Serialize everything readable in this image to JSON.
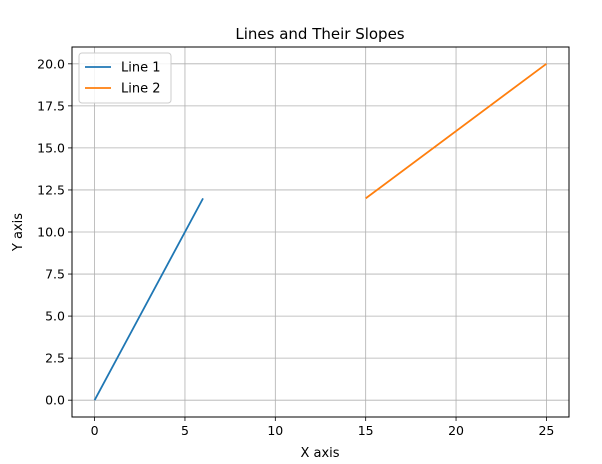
{
  "chart_data": {
    "type": "line",
    "title": "Lines and Their Slopes",
    "xlabel": "X axis",
    "ylabel": "Y axis",
    "xlim": [
      -1.25,
      26.25
    ],
    "ylim": [
      -1.0,
      21.0
    ],
    "xticks": [
      0,
      5,
      10,
      15,
      20,
      25
    ],
    "xtick_labels": [
      "0",
      "5",
      "10",
      "15",
      "20",
      "25"
    ],
    "yticks": [
      0.0,
      2.5,
      5.0,
      7.5,
      10.0,
      12.5,
      15.0,
      17.5,
      20.0
    ],
    "ytick_labels": [
      "0.0",
      "2.5",
      "5.0",
      "7.5",
      "10.0",
      "12.5",
      "15.0",
      "17.5",
      "20.0"
    ],
    "grid": true,
    "legend_position": "upper-left",
    "series": [
      {
        "name": "Line 1",
        "color": "#1f77b4",
        "x": [
          0,
          6
        ],
        "y": [
          0,
          12
        ]
      },
      {
        "name": "Line 2",
        "color": "#ff7f0e",
        "x": [
          15,
          25
        ],
        "y": [
          12,
          20
        ]
      }
    ]
  }
}
